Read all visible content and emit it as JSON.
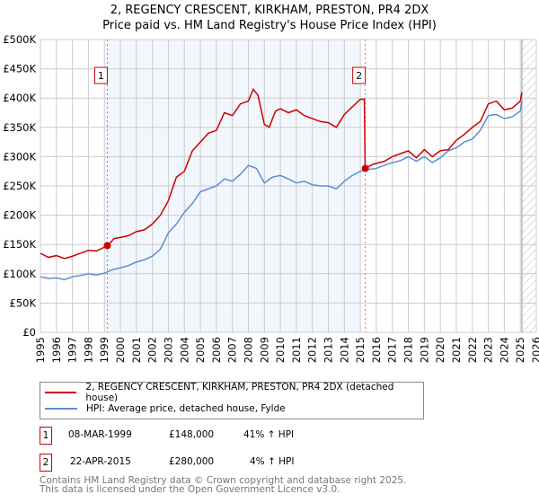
{
  "chart_data": {
    "type": "line",
    "title": "2, REGENCY CRESCENT, KIRKHAM, PRESTON, PR4 2DX",
    "subtitle": "Price paid vs. HM Land Registry's House Price Index (HPI)",
    "xlim": [
      1995,
      2026
    ],
    "ylim": [
      0,
      500000
    ],
    "x_ticks": [
      "1995",
      "1996",
      "1997",
      "1998",
      "1999",
      "2000",
      "2001",
      "2002",
      "2003",
      "2004",
      "2005",
      "2006",
      "2007",
      "2008",
      "2009",
      "2010",
      "2011",
      "2012",
      "2013",
      "2014",
      "2015",
      "2016",
      "2017",
      "2018",
      "2019",
      "2020",
      "2021",
      "2022",
      "2023",
      "2024",
      "2025",
      "2026"
    ],
    "y_ticks": [
      {
        "v": 0,
        "label": "£0"
      },
      {
        "v": 50000,
        "label": "£50K"
      },
      {
        "v": 100000,
        "label": "£100K"
      },
      {
        "v": 150000,
        "label": "£150K"
      },
      {
        "v": 200000,
        "label": "£200K"
      },
      {
        "v": 250000,
        "label": "£250K"
      },
      {
        "v": 300000,
        "label": "£300K"
      },
      {
        "v": 350000,
        "label": "£350K"
      },
      {
        "v": 400000,
        "label": "£400K"
      },
      {
        "v": 450000,
        "label": "£450K"
      },
      {
        "v": 500000,
        "label": "£500K"
      }
    ],
    "grid": true,
    "shaded_range": [
      1999.0,
      2015.0
    ],
    "forecast_hatch_from": 2025.1,
    "series": [
      {
        "name": "2, REGENCY CRESCENT, KIRKHAM, PRESTON, PR4 2DX (detached house)",
        "color": "#cc0000",
        "x": [
          1995,
          1995.5,
          1996,
          1996.5,
          1997,
          1997.5,
          1998,
          1998.5,
          1999.2,
          1999.6,
          2000,
          2000.5,
          2001,
          2001.5,
          2002,
          2002.5,
          2003,
          2003.5,
          2004,
          2004.5,
          2005,
          2005.5,
          2006,
          2006.5,
          2007,
          2007.5,
          2008,
          2008.3,
          2008.6,
          2009,
          2009.3,
          2009.7,
          2010,
          2010.5,
          2011,
          2011.5,
          2012,
          2012.5,
          2013,
          2013.5,
          2014,
          2014.5,
          2015,
          2015.25,
          2015.3,
          2015.8,
          2016.5,
          2017,
          2017.5,
          2018,
          2018.5,
          2019,
          2019.5,
          2020,
          2020.5,
          2021,
          2021.5,
          2022,
          2022.5,
          2023,
          2023.5,
          2024,
          2024.5,
          2025,
          2025.1
        ],
        "y": [
          135000,
          128000,
          131000,
          126000,
          130000,
          135000,
          140000,
          139000,
          148000,
          160000,
          162000,
          165000,
          172000,
          175000,
          185000,
          200000,
          225000,
          265000,
          275000,
          310000,
          325000,
          340000,
          345000,
          375000,
          370000,
          390000,
          395000,
          415000,
          405000,
          355000,
          350000,
          378000,
          382000,
          375000,
          380000,
          370000,
          365000,
          360000,
          358000,
          350000,
          372000,
          385000,
          398000,
          398000,
          280000,
          287000,
          292000,
          300000,
          305000,
          310000,
          298000,
          312000,
          300000,
          310000,
          312000,
          328000,
          338000,
          350000,
          360000,
          390000,
          395000,
          380000,
          383000,
          395000,
          410000
        ]
      },
      {
        "name": "HPI: Average price, detached house, Fylde",
        "color": "#5b8fd0",
        "x": [
          1995,
          1995.5,
          1996,
          1996.5,
          1997,
          1997.5,
          1998,
          1998.5,
          1999,
          1999.5,
          2000,
          2000.5,
          2001,
          2001.5,
          2002,
          2002.5,
          2003,
          2003.5,
          2004,
          2004.5,
          2005,
          2005.5,
          2006,
          2006.5,
          2007,
          2007.5,
          2008,
          2008.5,
          2009,
          2009.5,
          2010,
          2010.5,
          2011,
          2011.5,
          2012,
          2012.5,
          2013,
          2013.5,
          2014,
          2014.5,
          2015,
          2015.5,
          2016,
          2016.5,
          2017,
          2017.5,
          2018,
          2018.5,
          2019,
          2019.5,
          2020,
          2020.5,
          2021,
          2021.5,
          2022,
          2022.5,
          2023,
          2023.5,
          2024,
          2024.5,
          2025,
          2025.1
        ],
        "y": [
          95000,
          92000,
          93000,
          90000,
          95000,
          97000,
          100000,
          98000,
          101000,
          107000,
          110000,
          114000,
          120000,
          124000,
          130000,
          142000,
          170000,
          185000,
          205000,
          220000,
          240000,
          245000,
          250000,
          262000,
          258000,
          270000,
          285000,
          280000,
          255000,
          265000,
          268000,
          262000,
          255000,
          258000,
          252000,
          250000,
          250000,
          245000,
          258000,
          268000,
          275000,
          278000,
          280000,
          285000,
          290000,
          293000,
          300000,
          292000,
          300000,
          290000,
          298000,
          310000,
          315000,
          325000,
          330000,
          345000,
          370000,
          372000,
          365000,
          368000,
          378000,
          395000
        ]
      }
    ],
    "markers": [
      {
        "label": "1",
        "x": 1999.18,
        "y": 148000
      },
      {
        "label": "2",
        "x": 2015.31,
        "y": 280000
      }
    ]
  },
  "legend": {
    "red": "2, REGENCY CRESCENT, KIRKHAM, PRESTON, PR4 2DX (detached house)",
    "blue": "HPI: Average price, detached house, Fylde"
  },
  "transactions": [
    {
      "num": "1",
      "date": "08-MAR-1999",
      "price": "£148,000",
      "hpi": "41% ↑ HPI"
    },
    {
      "num": "2",
      "date": "22-APR-2015",
      "price": "£280,000",
      "hpi": "4% ↑ HPI"
    }
  ],
  "footer": {
    "line1": "Contains HM Land Registry data © Crown copyright and database right 2025.",
    "line2": "This data is licensed under the Open Government Licence v3.0."
  }
}
